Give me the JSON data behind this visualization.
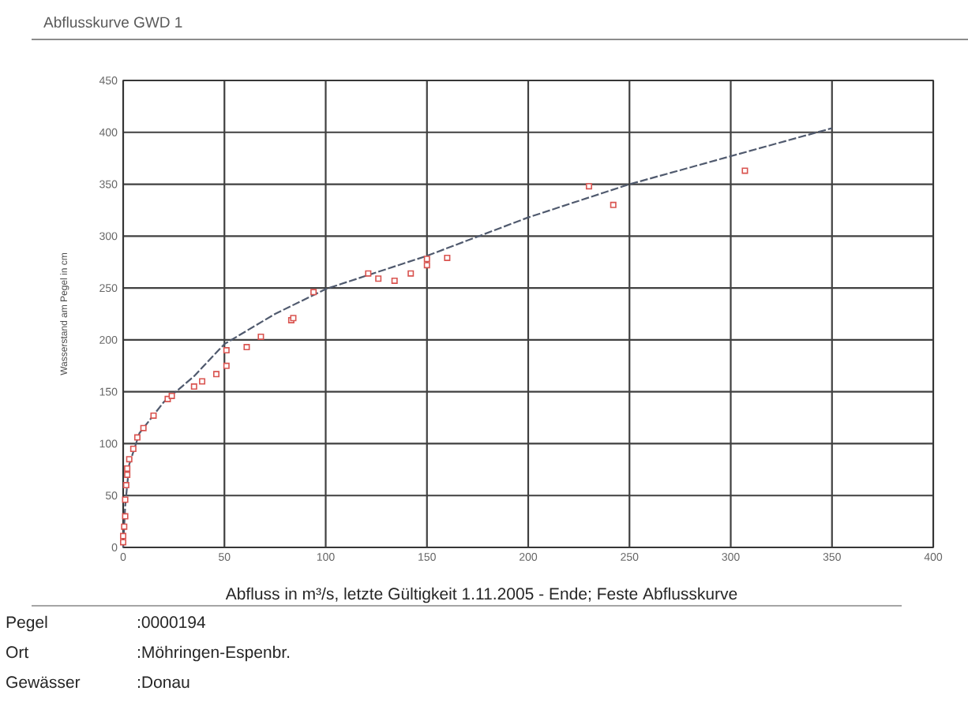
{
  "chart_data": {
    "type": "scatter",
    "title": "Abflusskurve GWD 1",
    "xlabel": "Abfluss in m³/s, letzte Gültigkeit 1.11.2005 - Ende; Feste Abflusskurve",
    "ylabel": "Wasserstand am Pegel in cm",
    "xlim": [
      0,
      400
    ],
    "xticks": [
      0,
      50,
      100,
      150,
      200,
      250,
      300,
      350,
      400
    ],
    "ylim": [
      0,
      450
    ],
    "yticks": [
      0,
      50,
      100,
      150,
      200,
      250,
      300,
      350,
      400,
      450
    ],
    "grid": true,
    "series": [
      {
        "marker": "square",
        "color": "#d9534f",
        "x": [
          0,
          0,
          0.5,
          1,
          1,
          1.5,
          2,
          2,
          3,
          5,
          7,
          10,
          15,
          22,
          24,
          35,
          39,
          46,
          51,
          51,
          61,
          68,
          83,
          84,
          94,
          121,
          126,
          134,
          142,
          150,
          150,
          160,
          230,
          242,
          307
        ],
        "values": [
          5,
          11,
          20,
          30,
          46,
          60,
          70,
          76,
          85,
          95,
          106,
          115,
          127,
          143,
          146,
          155,
          160,
          167,
          175,
          190,
          193,
          203,
          219,
          221,
          246,
          264,
          259,
          257,
          264,
          272,
          278,
          279,
          348,
          330,
          363
        ]
      },
      {
        "type": "line",
        "marker": "none",
        "line_style": "dashed",
        "color": "#505a6e",
        "x": [
          0,
          1,
          3,
          8,
          20,
          35,
          50,
          75,
          100,
          150,
          200,
          250,
          300,
          350
        ],
        "values": [
          0,
          40,
          80,
          110,
          140,
          165,
          196,
          225,
          249,
          281,
          318,
          350,
          377,
          404
        ]
      }
    ],
    "annotations": [
      "Pegel",
      ":0000194",
      "Ort",
      ":Möhringen-Espenbr.",
      "Gewässer",
      ":Donau"
    ]
  }
}
